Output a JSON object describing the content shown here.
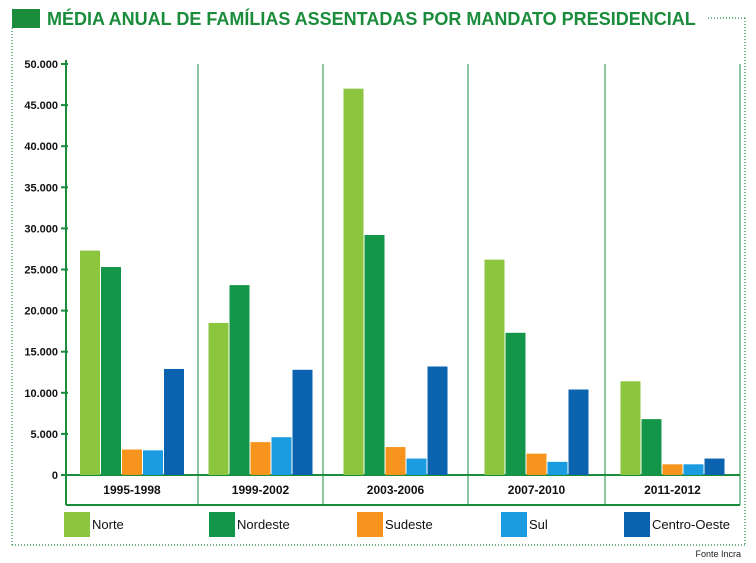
{
  "chart_data": {
    "type": "bar",
    "title": "MÉDIA ANUAL DE FAMÍLIAS ASSENTADAS POR MANDATO PRESIDENCIAL",
    "categories": [
      "1995-1998",
      "1999-2002",
      "2003-2006",
      "2007-2010",
      "2011-2012"
    ],
    "series": [
      {
        "name": "Norte",
        "color": "#8cc63f",
        "values": [
          27300,
          18500,
          47000,
          26200,
          11400
        ]
      },
      {
        "name": "Nordeste",
        "color": "#14964a",
        "values": [
          25300,
          23100,
          29200,
          17300,
          6800
        ]
      },
      {
        "name": "Sudeste",
        "color": "#f7941d",
        "values": [
          3100,
          4000,
          3400,
          2600,
          1300
        ]
      },
      {
        "name": "Sul",
        "color": "#1b9be0",
        "values": [
          3000,
          4600,
          2000,
          1600,
          1300
        ]
      },
      {
        "name": "Centro-Oeste",
        "color": "#0b63b0",
        "values": [
          12900,
          12800,
          13200,
          10400,
          2000
        ]
      }
    ],
    "yticks": [
      "50.000",
      "45.000",
      "40.000",
      "35.000",
      "30.000",
      "25.000",
      "20.000",
      "15.000",
      "10.000",
      "5.000",
      "0"
    ],
    "ylim": [
      0,
      50000
    ],
    "legend_position": "bottom",
    "grid": "vertical separators between groups",
    "source": "Fonte Incra"
  },
  "colors": {
    "accent_green": "#1a8c3c",
    "title_green": "#1a8c3c"
  }
}
